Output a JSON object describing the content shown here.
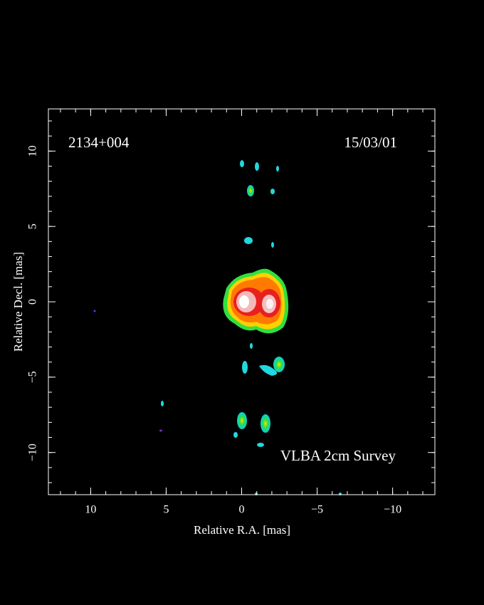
{
  "chart_data": {
    "type": "image",
    "annotations": [
      "2134+004",
      "15/03/01",
      "VLBA 2cm Survey"
    ],
    "x_label": "Relative R.A. [mas]",
    "y_label": "Relative Decl. [mas]",
    "xlim": [
      12.8,
      -12.8
    ],
    "ylim": [
      -12.8,
      12.8
    ],
    "xticks": [
      10,
      5,
      0,
      {
        "value": -5,
        "label": "−5"
      },
      {
        "value": -10,
        "label": "−10"
      }
    ],
    "yticks": [
      {
        "value": -10,
        "label": "−10"
      },
      {
        "value": -5,
        "label": "−5"
      },
      0,
      5,
      10
    ],
    "minor_tick_step": 1,
    "color": "#ffffff"
  }
}
